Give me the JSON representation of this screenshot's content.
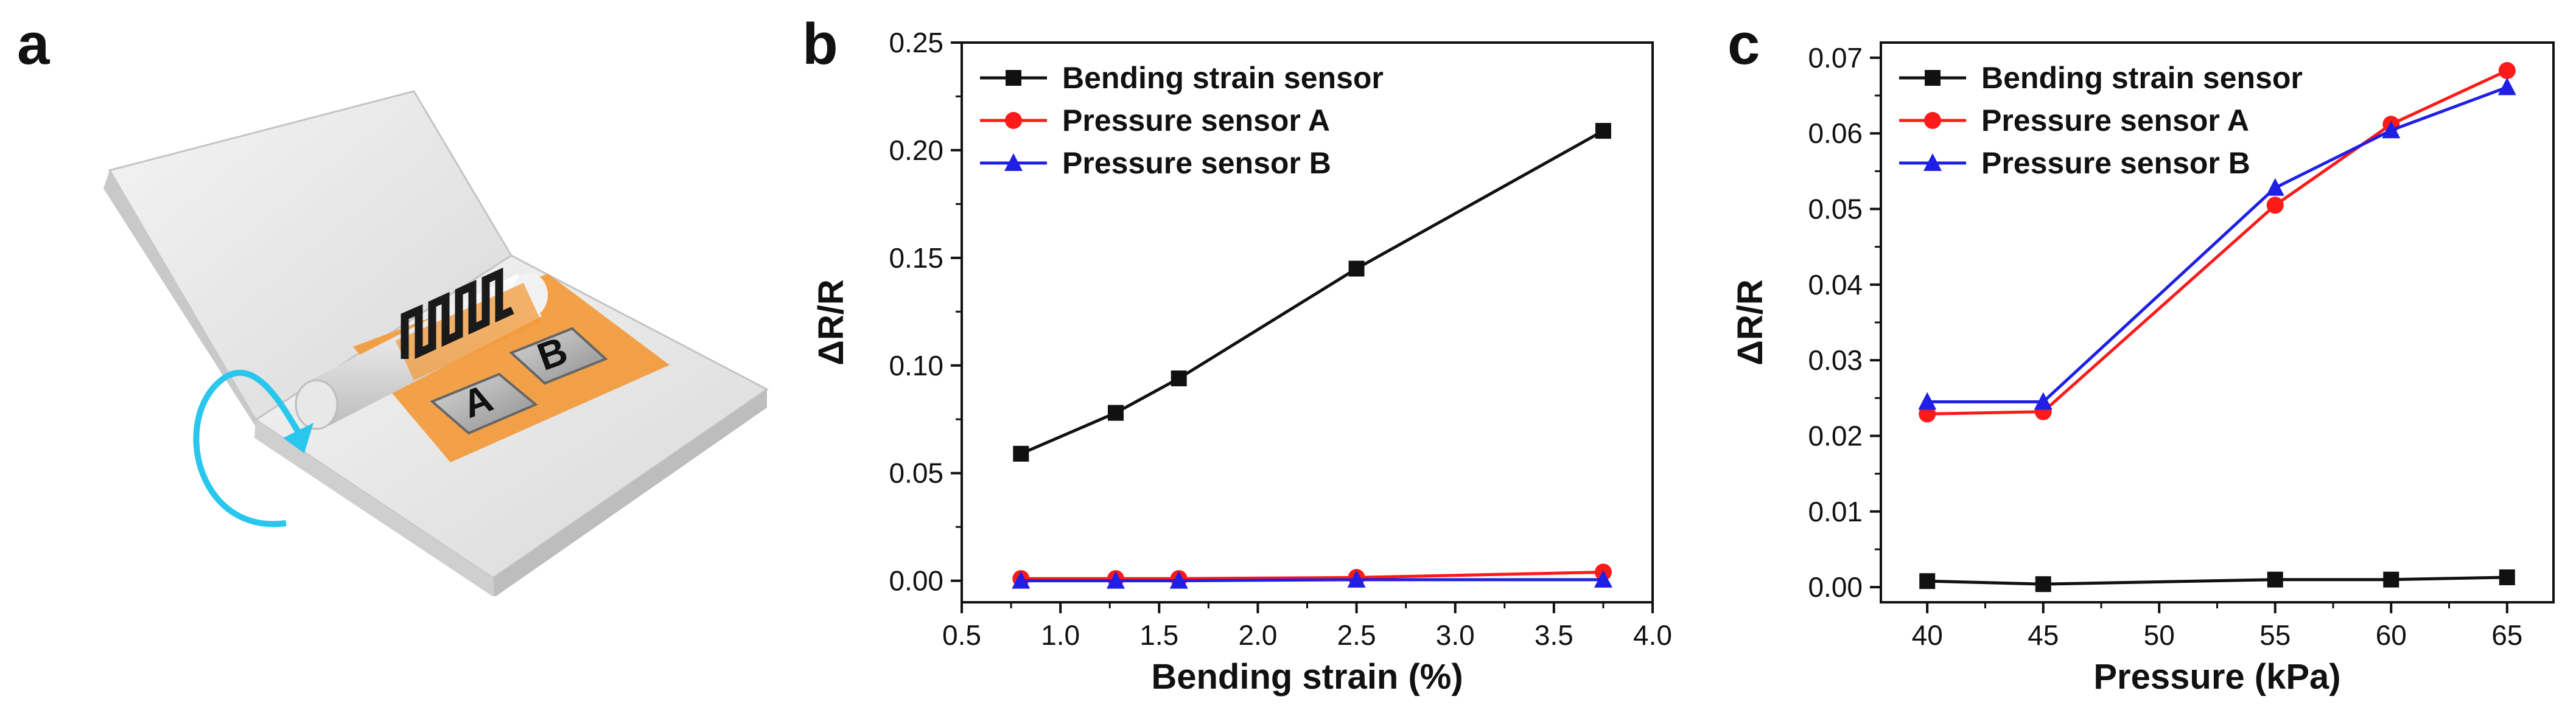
{
  "panels": {
    "a": {
      "label": "a",
      "sensor_a_text": "A",
      "sensor_b_text": "B"
    },
    "b": {
      "label": "b"
    },
    "c": {
      "label": "c"
    }
  },
  "colors": {
    "black": "#111111",
    "red": "#ff1a1a",
    "blue": "#1f1fe6",
    "arrow": "#29c7ee",
    "orange": "#f39a3a"
  },
  "chart_data": [
    {
      "type": "line",
      "xlabel": "Bending strain (%)",
      "ylabel": "ΔR/R",
      "xlim": [
        0.5,
        4.0
      ],
      "ylim": [
        -0.01,
        0.25
      ],
      "xticks": [
        0.5,
        1.0,
        1.5,
        2.0,
        2.5,
        3.0,
        3.5,
        4.0
      ],
      "xtick_labels": [
        "0.5",
        "1.0",
        "1.5",
        "2.0",
        "2.5",
        "3.0",
        "3.5",
        "4.0"
      ],
      "yticks": [
        0.0,
        0.05,
        0.1,
        0.15,
        0.2,
        0.25
      ],
      "ytick_labels": [
        "0.00",
        "0.05",
        "0.10",
        "0.15",
        "0.20",
        "0.25"
      ],
      "legend_position": "top-left",
      "series": [
        {
          "name": "Bending strain sensor",
          "color": "#111111",
          "marker": "square",
          "x": [
            0.8,
            1.28,
            1.6,
            2.5,
            3.75
          ],
          "y": [
            0.059,
            0.078,
            0.094,
            0.145,
            0.209
          ]
        },
        {
          "name": "Pressure sensor A",
          "color": "#ff1a1a",
          "marker": "circle",
          "x": [
            0.8,
            1.28,
            1.6,
            2.5,
            3.75
          ],
          "y": [
            0.001,
            0.001,
            0.001,
            0.0015,
            0.004
          ]
        },
        {
          "name": "Pressure sensor B",
          "color": "#1f1fe6",
          "marker": "triangle",
          "x": [
            0.8,
            1.28,
            1.6,
            2.5,
            3.75
          ],
          "y": [
            0.0,
            0.0,
            0.0,
            0.0005,
            0.0005
          ]
        }
      ]
    },
    {
      "type": "line",
      "xlabel": "Pressure (kPa)",
      "ylabel": "ΔR/R",
      "xlim": [
        38,
        67
      ],
      "ylim": [
        -0.002,
        0.072
      ],
      "xticks": [
        40,
        45,
        50,
        55,
        60,
        65
      ],
      "xtick_labels": [
        "40",
        "45",
        "50",
        "55",
        "60",
        "65"
      ],
      "yticks": [
        0.0,
        0.01,
        0.02,
        0.03,
        0.04,
        0.05,
        0.06,
        0.07
      ],
      "ytick_labels": [
        "0.00",
        "0.01",
        "0.02",
        "0.03",
        "0.04",
        "0.05",
        "0.06",
        "0.07"
      ],
      "legend_position": "top-left",
      "series": [
        {
          "name": "Bending strain sensor",
          "color": "#111111",
          "marker": "square",
          "x": [
            40,
            45,
            55,
            60,
            65
          ],
          "y": [
            0.0008,
            0.0004,
            0.001,
            0.001,
            0.0013
          ]
        },
        {
          "name": "Pressure sensor A",
          "color": "#ff1a1a",
          "marker": "circle",
          "x": [
            40,
            45,
            55,
            60,
            65
          ],
          "y": [
            0.0229,
            0.0232,
            0.0505,
            0.0612,
            0.0683
          ]
        },
        {
          "name": "Pressure sensor B",
          "color": "#1f1fe6",
          "marker": "triangle",
          "x": [
            40,
            45,
            55,
            60,
            65
          ],
          "y": [
            0.0245,
            0.0245,
            0.0528,
            0.0604,
            0.0661
          ]
        }
      ]
    }
  ]
}
